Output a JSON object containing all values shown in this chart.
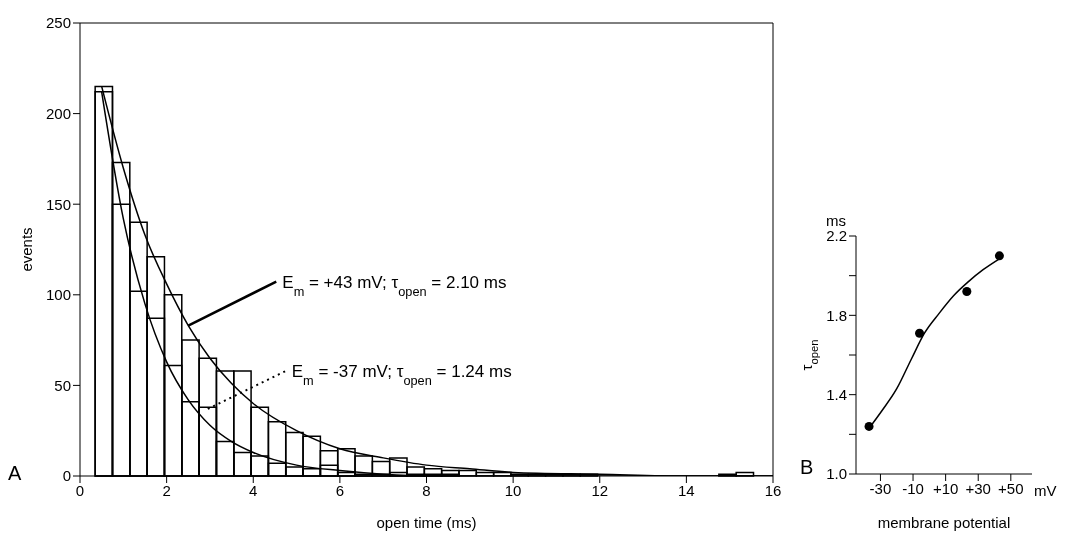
{
  "chart_data": [
    {
      "type": "histogram",
      "title": "A",
      "xlabel": "open time (ms)",
      "ylabel": "events",
      "bins": [
        0.35,
        0.75,
        1.15,
        1.55,
        1.95,
        2.35,
        2.75,
        3.15,
        3.55,
        3.95,
        4.35,
        4.75,
        5.15,
        5.55,
        5.95,
        6.35,
        6.75,
        7.15,
        7.55,
        7.95,
        8.35,
        8.75,
        9.15,
        9.55,
        9.95,
        10.35,
        10.75,
        11.15,
        11.55,
        11.95,
        12.35,
        12.75,
        13.15,
        13.55,
        13.95,
        14.35,
        14.75,
        15.15,
        15.55,
        15.95
      ],
      "series": [
        {
          "color": "#000000",
          "values": [
            215,
            173,
            140,
            121,
            100,
            75,
            65,
            58,
            58,
            38,
            30,
            24,
            22,
            14,
            15,
            11,
            8,
            10,
            5,
            4,
            3,
            3,
            2,
            2,
            1,
            1,
            1,
            1,
            1,
            0,
            0,
            0,
            0,
            0,
            0,
            0,
            1,
            2,
            0
          ]
        },
        {
          "color": "#000000",
          "values": [
            212,
            150,
            102,
            87,
            61,
            41,
            38,
            19,
            13,
            11,
            7,
            5,
            4,
            6,
            2,
            1,
            1,
            2,
            1,
            1,
            1,
            0,
            0,
            0,
            0,
            0,
            0,
            0,
            0,
            0,
            0,
            0,
            0,
            0,
            0,
            0,
            0,
            0,
            0
          ]
        },
        {
          "type": "line",
          "color": "#000000",
          "x": [
            0.5,
            1,
            1.5,
            2,
            2.5,
            3,
            3.5,
            4,
            5,
            6,
            7,
            8,
            9,
            10,
            12,
            14,
            16
          ],
          "values": [
            215,
            170,
            133,
            106,
            83,
            65,
            51,
            40,
            25,
            15,
            10,
            6,
            4,
            2,
            1,
            0,
            0
          ]
        },
        {
          "type": "line",
          "color": "#000000",
          "x": [
            0.5,
            1,
            1.5,
            2,
            2.5,
            3,
            3.5,
            4,
            5,
            6,
            7,
            8,
            10,
            12,
            14,
            16
          ],
          "values": [
            212,
            142,
            95,
            63,
            42,
            28,
            19,
            13,
            6,
            3,
            1,
            0,
            0,
            0,
            0,
            0
          ]
        }
      ],
      "annotations": [
        {
          "text": "E$_{m}$ = +43 mV; τ$_{open}$ = 2.10 ms",
          "x": 2.5,
          "y": 83
        },
        {
          "text": "E$_{m}$ = -37 mV; τ$_{open}$ = 1.24 ms",
          "x": 2.95,
          "y": 37
        }
      ],
      "xlim": [
        0,
        16
      ],
      "xticks": [
        0,
        2,
        4,
        6,
        8,
        10,
        12,
        14,
        16
      ],
      "ylim": [
        0,
        250
      ],
      "yticks": [
        0,
        50,
        100,
        150,
        200,
        250
      ]
    },
    {
      "type": "scatter",
      "title": "B",
      "xlabel": "membrane potential",
      "ylabel": "τ$_{open}$",
      "series": [
        {
          "color": "#000000",
          "marker": "circle",
          "x": [
            -37,
            -6,
            23,
            43
          ],
          "values": [
            1.24,
            1.71,
            1.92,
            2.1
          ]
        },
        {
          "type": "line",
          "color": "#000000",
          "x": [
            -37,
            -29,
            -20,
            -11,
            -3,
            6,
            15,
            24,
            33,
            44
          ],
          "values": [
            1.23,
            1.32,
            1.43,
            1.58,
            1.71,
            1.81,
            1.9,
            1.97,
            2.03,
            2.09
          ]
        }
      ],
      "annotations": [
        "mV",
        "ms"
      ],
      "xlim": [
        -45,
        63
      ],
      "xticks": [
        -30,
        -10,
        {
          "value": 10,
          "label": "+10"
        },
        {
          "value": 30,
          "label": "+30"
        },
        {
          "value": 50,
          "label": "+50"
        }
      ],
      "ylim": [
        1.0,
        2.2
      ],
      "yticks": [
        {
          "value": 1,
          "label": "1.0"
        },
        {
          "value": 1.2,
          "label": null
        },
        1.4,
        {
          "value": 1.6,
          "label": null
        },
        1.8,
        {
          "value": 2,
          "label": null
        },
        2.2
      ]
    }
  ]
}
